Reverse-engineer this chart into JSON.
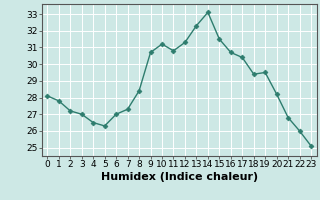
{
  "x": [
    0,
    1,
    2,
    3,
    4,
    5,
    6,
    7,
    8,
    9,
    10,
    11,
    12,
    13,
    14,
    15,
    16,
    17,
    18,
    19,
    20,
    21,
    22,
    23
  ],
  "y": [
    28.1,
    27.8,
    27.2,
    27.0,
    26.5,
    26.3,
    27.0,
    27.3,
    28.4,
    30.7,
    31.2,
    30.8,
    31.3,
    32.3,
    33.1,
    31.5,
    30.7,
    30.4,
    29.4,
    29.5,
    28.2,
    26.8,
    26.0,
    25.1
  ],
  "xlabel": "Humidex (Indice chaleur)",
  "ylim": [
    24.5,
    33.6
  ],
  "xlim": [
    -0.5,
    23.5
  ],
  "yticks": [
    25,
    26,
    27,
    28,
    29,
    30,
    31,
    32,
    33
  ],
  "xticks": [
    0,
    1,
    2,
    3,
    4,
    5,
    6,
    7,
    8,
    9,
    10,
    11,
    12,
    13,
    14,
    15,
    16,
    17,
    18,
    19,
    20,
    21,
    22,
    23
  ],
  "line_color": "#2e7d6e",
  "marker": "D",
  "marker_size": 2.5,
  "bg_color": "#cde8e5",
  "grid_color": "#ffffff",
  "xlabel_fontsize": 8,
  "tick_fontsize": 6.5,
  "linewidth": 1.0
}
